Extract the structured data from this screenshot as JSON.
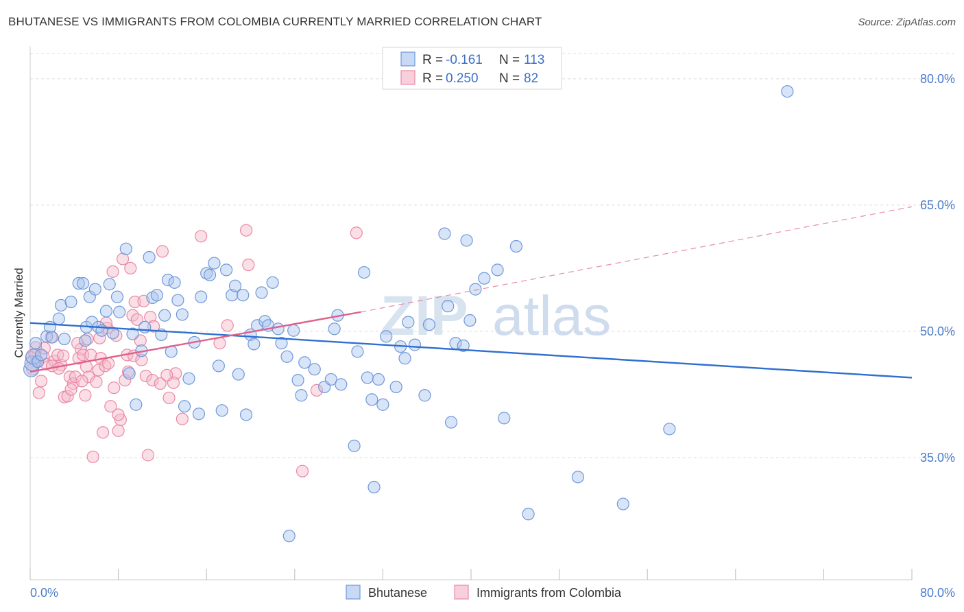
{
  "title": "BHUTANESE VS IMMIGRANTS FROM COLOMBIA CURRENTLY MARRIED CORRELATION CHART",
  "source": "Source: ZipAtlas.com",
  "watermark": {
    "zip": "ZIP",
    "atlas": "atlas"
  },
  "colors": {
    "blue_fill": "#a9c4ee",
    "blue_stroke": "#6f98d8",
    "blue_line": "#2f6fcf",
    "pink_fill": "#f4b7c8",
    "pink_stroke": "#e889a6",
    "pink_line": "#e0608a",
    "grid": "#dcdcdc",
    "axis_text": "#4a7cc9"
  },
  "legend": {
    "rows": [
      {
        "r_label": "R = ",
        "r_value": "-0.161",
        "n_label": "N = ",
        "n_value": "113",
        "color": "blue"
      },
      {
        "r_label": "R = ",
        "r_value": "0.250",
        "n_label": "N = ",
        "n_value": " 82",
        "color": "pink"
      }
    ]
  },
  "chart_data": {
    "type": "scatter",
    "title": "BHUTANESE VS IMMIGRANTS FROM COLOMBIA CURRENTLY MARRIED CORRELATION CHART",
    "xlabel": "",
    "ylabel": "Currently Married",
    "xlim": [
      0,
      80
    ],
    "ylim": [
      20.5,
      83
    ],
    "x_ticks": [
      "0.0%",
      "80.0%"
    ],
    "y_ticks": [
      {
        "value": 35,
        "label": "35.0%"
      },
      {
        "value": 50,
        "label": "50.0%"
      },
      {
        "value": 65,
        "label": "65.0%"
      },
      {
        "value": 80,
        "label": "80.0%"
      }
    ],
    "grid": true,
    "legend_position": "bottom",
    "series": [
      {
        "name": "Bhutanese",
        "color": "blue",
        "trend": {
          "x": [
            0,
            80
          ],
          "y": [
            51.0,
            44.5
          ],
          "dashed_extension": false
        },
        "points": [
          [
            0.1,
            45.5
          ],
          [
            0.2,
            46.2
          ],
          [
            0.3,
            47.0
          ],
          [
            0.5,
            48.6
          ],
          [
            0.7,
            46.4
          ],
          [
            1.0,
            47.2
          ],
          [
            1.5,
            49.4
          ],
          [
            1.8,
            50.5
          ],
          [
            2.0,
            49.3
          ],
          [
            2.6,
            51.5
          ],
          [
            2.8,
            53.1
          ],
          [
            3.1,
            49.1
          ],
          [
            3.7,
            53.5
          ],
          [
            4.4,
            55.7
          ],
          [
            4.8,
            55.7
          ],
          [
            5.0,
            48.9
          ],
          [
            5.1,
            50.5
          ],
          [
            5.4,
            54.1
          ],
          [
            5.6,
            51.1
          ],
          [
            5.9,
            55.0
          ],
          [
            6.2,
            50.5
          ],
          [
            6.5,
            50.1
          ],
          [
            6.9,
            52.4
          ],
          [
            7.2,
            55.6
          ],
          [
            7.5,
            49.8
          ],
          [
            7.9,
            54.1
          ],
          [
            8.1,
            52.3
          ],
          [
            8.7,
            59.8
          ],
          [
            9.0,
            45.0
          ],
          [
            9.3,
            49.7
          ],
          [
            9.6,
            41.3
          ],
          [
            10.1,
            47.7
          ],
          [
            10.4,
            50.5
          ],
          [
            10.8,
            58.8
          ],
          [
            11.1,
            54.0
          ],
          [
            11.5,
            54.3
          ],
          [
            11.9,
            49.6
          ],
          [
            12.2,
            51.9
          ],
          [
            12.5,
            56.1
          ],
          [
            12.8,
            47.6
          ],
          [
            13.1,
            55.8
          ],
          [
            13.4,
            53.7
          ],
          [
            13.8,
            52.0
          ],
          [
            14.0,
            41.1
          ],
          [
            14.4,
            44.4
          ],
          [
            14.9,
            48.7
          ],
          [
            15.3,
            40.2
          ],
          [
            15.5,
            54.1
          ],
          [
            16.0,
            56.9
          ],
          [
            16.3,
            56.7
          ],
          [
            16.7,
            58.1
          ],
          [
            17.1,
            45.9
          ],
          [
            17.4,
            40.6
          ],
          [
            17.8,
            57.3
          ],
          [
            18.3,
            54.3
          ],
          [
            18.6,
            55.4
          ],
          [
            18.9,
            44.9
          ],
          [
            19.3,
            54.3
          ],
          [
            19.6,
            40.1
          ],
          [
            20.0,
            49.6
          ],
          [
            20.3,
            48.5
          ],
          [
            20.6,
            50.7
          ],
          [
            21.0,
            54.6
          ],
          [
            21.3,
            51.2
          ],
          [
            21.6,
            50.7
          ],
          [
            22.0,
            55.8
          ],
          [
            22.5,
            50.3
          ],
          [
            22.8,
            48.6
          ],
          [
            23.3,
            47.0
          ],
          [
            23.9,
            50.1
          ],
          [
            24.3,
            44.2
          ],
          [
            24.6,
            42.4
          ],
          [
            24.9,
            46.3
          ],
          [
            25.8,
            45.5
          ],
          [
            26.7,
            43.4
          ],
          [
            27.3,
            44.3
          ],
          [
            27.6,
            50.3
          ],
          [
            27.9,
            51.9
          ],
          [
            28.2,
            43.7
          ],
          [
            29.4,
            36.4
          ],
          [
            29.7,
            47.6
          ],
          [
            30.3,
            57.0
          ],
          [
            30.6,
            44.5
          ],
          [
            31.0,
            41.9
          ],
          [
            31.2,
            31.5
          ],
          [
            31.6,
            44.3
          ],
          [
            32.0,
            41.3
          ],
          [
            32.3,
            49.4
          ],
          [
            33.2,
            43.4
          ],
          [
            33.6,
            48.2
          ],
          [
            34.0,
            46.8
          ],
          [
            34.3,
            51.1
          ],
          [
            34.9,
            48.4
          ],
          [
            35.8,
            42.4
          ],
          [
            36.2,
            50.8
          ],
          [
            37.6,
            61.6
          ],
          [
            37.9,
            53.0
          ],
          [
            38.2,
            39.2
          ],
          [
            38.6,
            48.6
          ],
          [
            39.3,
            48.3
          ],
          [
            39.6,
            60.8
          ],
          [
            39.9,
            51.3
          ],
          [
            40.4,
            55.0
          ],
          [
            41.2,
            56.3
          ],
          [
            42.4,
            57.3
          ],
          [
            43.0,
            39.7
          ],
          [
            44.1,
            60.1
          ],
          [
            45.2,
            28.3
          ],
          [
            49.7,
            32.7
          ],
          [
            53.8,
            29.5
          ],
          [
            58.0,
            38.4
          ],
          [
            68.7,
            78.5
          ],
          [
            23.5,
            25.7
          ]
        ]
      },
      {
        "name": "Immigrants from Colombia",
        "color": "pink",
        "trend": {
          "x": [
            0,
            30
          ],
          "y": [
            45.2,
            52.3
          ],
          "dashed_extension": true,
          "dashed_to": [
            80,
            64.8
          ]
        },
        "points": [
          [
            0.1,
            46.9
          ],
          [
            0.2,
            45.5
          ],
          [
            0.4,
            47.3
          ],
          [
            0.6,
            46.4
          ],
          [
            0.8,
            42.7
          ],
          [
            1.0,
            44.1
          ],
          [
            1.2,
            47.0
          ],
          [
            1.5,
            46.1
          ],
          [
            1.9,
            49.3
          ],
          [
            2.2,
            46.5
          ],
          [
            2.5,
            47.2
          ],
          [
            2.8,
            46.0
          ],
          [
            3.1,
            42.2
          ],
          [
            3.4,
            42.3
          ],
          [
            3.6,
            44.6
          ],
          [
            3.9,
            43.8
          ],
          [
            4.1,
            44.6
          ],
          [
            4.4,
            46.8
          ],
          [
            4.6,
            47.9
          ],
          [
            4.8,
            47.2
          ],
          [
            5.0,
            42.4
          ],
          [
            5.1,
            45.8
          ],
          [
            5.3,
            44.6
          ],
          [
            5.5,
            47.2
          ],
          [
            5.7,
            35.1
          ],
          [
            6.0,
            44.0
          ],
          [
            6.2,
            45.4
          ],
          [
            6.4,
            46.8
          ],
          [
            6.6,
            38.0
          ],
          [
            6.8,
            45.9
          ],
          [
            7.0,
            50.4
          ],
          [
            7.3,
            41.1
          ],
          [
            7.5,
            57.1
          ],
          [
            7.6,
            43.3
          ],
          [
            7.8,
            49.5
          ],
          [
            8.0,
            38.2
          ],
          [
            8.2,
            39.5
          ],
          [
            8.4,
            58.6
          ],
          [
            8.6,
            44.2
          ],
          [
            8.8,
            47.2
          ],
          [
            9.1,
            57.5
          ],
          [
            9.3,
            51.9
          ],
          [
            9.5,
            53.5
          ],
          [
            9.7,
            51.4
          ],
          [
            10.0,
            48.9
          ],
          [
            10.3,
            53.6
          ],
          [
            10.5,
            44.7
          ],
          [
            10.7,
            35.3
          ],
          [
            10.9,
            51.7
          ],
          [
            11.1,
            44.2
          ],
          [
            12.0,
            59.5
          ],
          [
            12.6,
            42.1
          ],
          [
            13.2,
            45.0
          ],
          [
            13.8,
            39.6
          ],
          [
            15.5,
            61.3
          ],
          [
            17.2,
            48.6
          ],
          [
            17.9,
            50.7
          ],
          [
            19.6,
            62.0
          ],
          [
            19.8,
            57.9
          ],
          [
            24.7,
            33.4
          ],
          [
            26.0,
            43.0
          ],
          [
            29.6,
            61.7
          ],
          [
            11.8,
            43.8
          ],
          [
            8.0,
            40.1
          ],
          [
            6.3,
            49.2
          ],
          [
            3.0,
            47.1
          ],
          [
            2.0,
            45.9
          ],
          [
            1.3,
            48.0
          ],
          [
            4.3,
            48.6
          ],
          [
            9.4,
            47.1
          ],
          [
            7.1,
            46.2
          ],
          [
            5.2,
            49.1
          ],
          [
            3.7,
            43.1
          ],
          [
            11.2,
            50.6
          ],
          [
            13.0,
            43.9
          ],
          [
            8.9,
            45.2
          ],
          [
            10.1,
            46.6
          ],
          [
            6.9,
            51.0
          ],
          [
            4.7,
            44.1
          ],
          [
            2.6,
            45.6
          ],
          [
            0.5,
            48.1
          ],
          [
            12.4,
            44.8
          ]
        ]
      }
    ]
  },
  "bottom_legend": [
    {
      "label": "Bhutanese",
      "color": "blue"
    },
    {
      "label": "Immigrants from Colombia",
      "color": "pink"
    }
  ]
}
